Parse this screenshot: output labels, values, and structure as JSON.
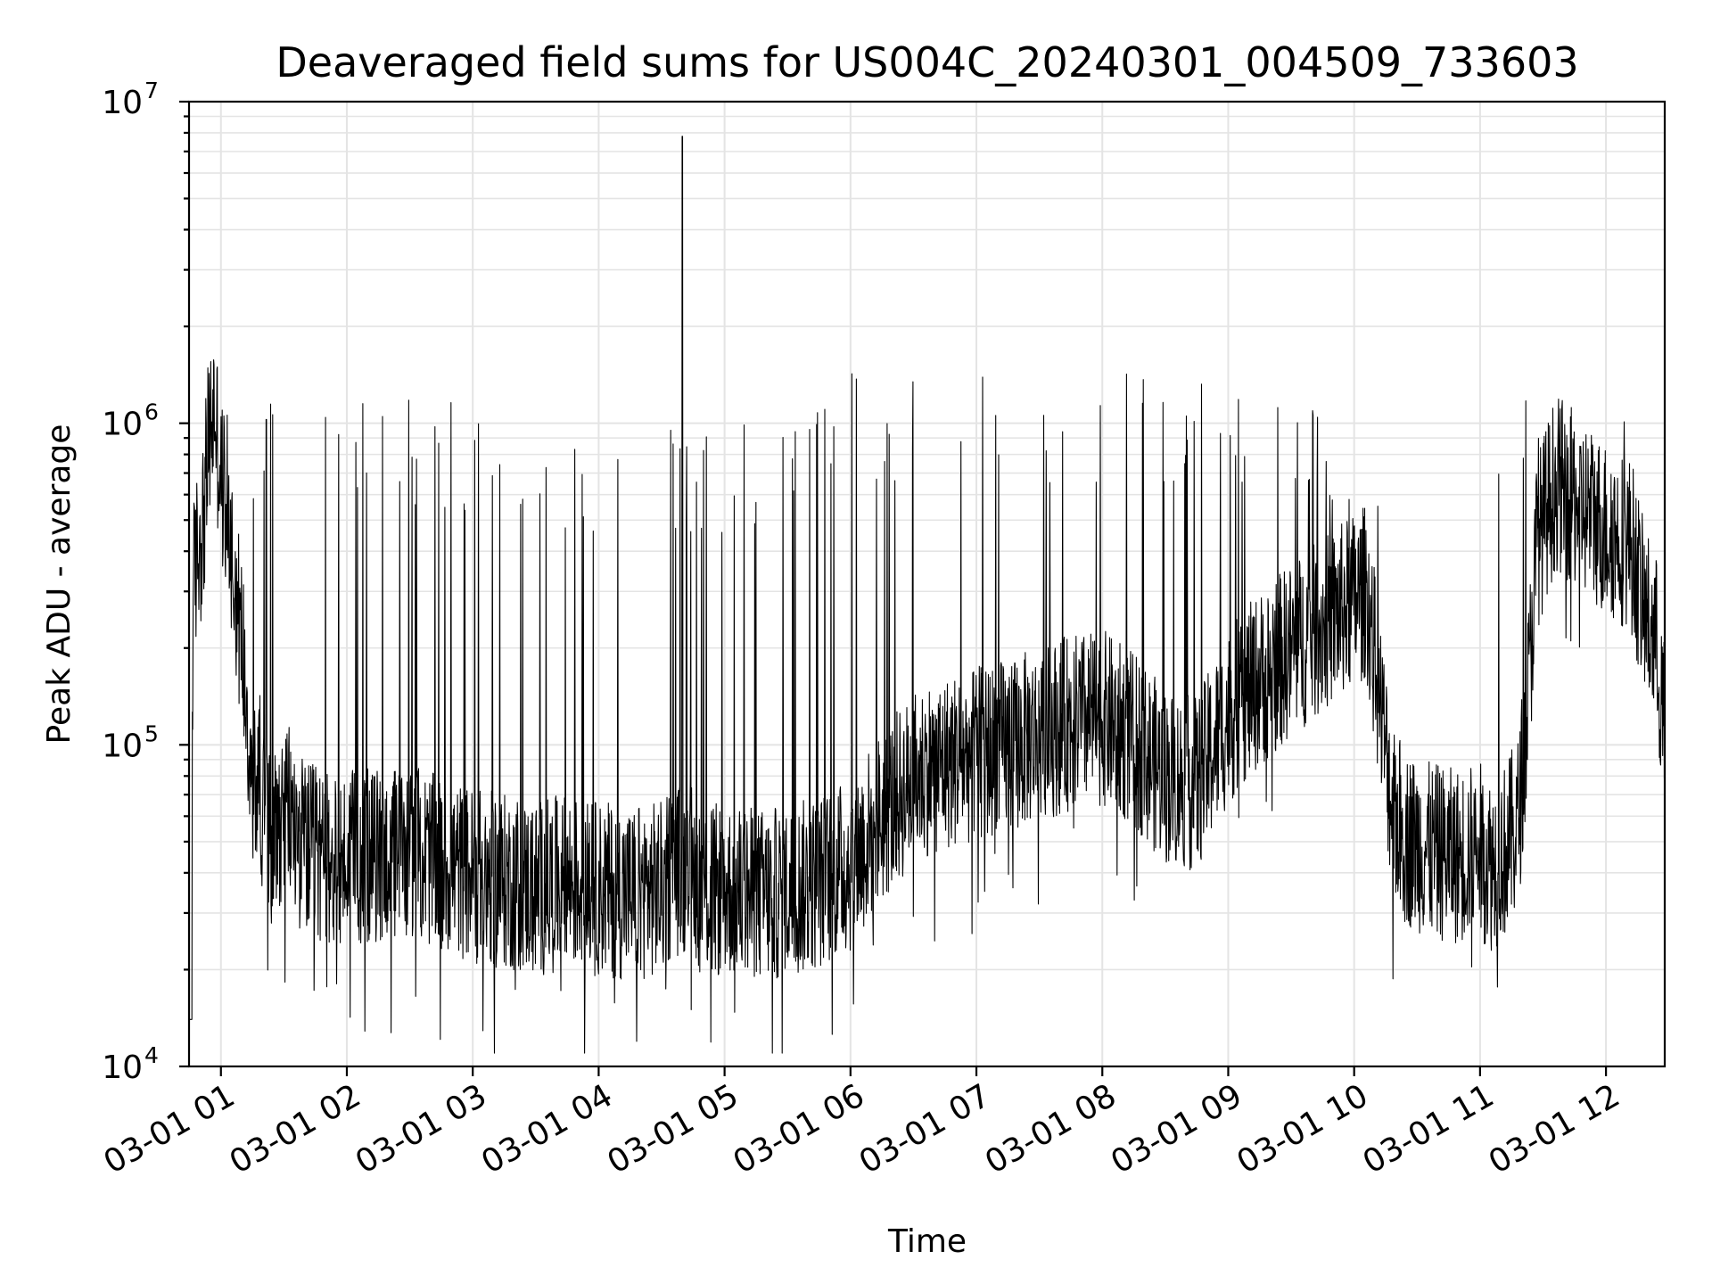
{
  "chart_data": {
    "type": "line",
    "title": "Deaveraged field sums for US004C_20240301_004509_733603",
    "xlabel": "Time",
    "ylabel": "Peak ADU - average",
    "yscale": "log",
    "ylim": [
      10000,
      10000000
    ],
    "xlim": [
      "2024-03-01 00:45",
      "2024-03-01 12:28"
    ],
    "x_ticks": [
      "03-01 01",
      "03-01 02",
      "03-01 03",
      "03-01 04",
      "03-01 05",
      "03-01 06",
      "03-01 07",
      "03-01 08",
      "03-01 09",
      "03-01 10",
      "03-01 11",
      "03-01 12"
    ],
    "y_ticks": [
      {
        "base": "10",
        "exp": "4",
        "value": 10000
      },
      {
        "base": "10",
        "exp": "5",
        "value": 100000
      },
      {
        "base": "10",
        "exp": "6",
        "value": 1000000
      },
      {
        "base": "10",
        "exp": "7",
        "value": 10000000
      }
    ],
    "grid": true,
    "series": [
      {
        "color": "#000000",
        "x_hours": [
          0.75,
          0.78,
          0.82,
          0.86,
          0.9,
          0.95,
          1.0,
          1.05,
          1.1,
          1.15,
          1.2,
          1.25,
          1.3,
          1.35,
          1.4,
          1.45,
          1.5,
          1.55,
          1.6,
          1.7,
          1.8,
          1.9,
          2.0,
          2.25,
          2.5,
          2.75,
          3.0,
          3.25,
          3.5,
          3.75,
          4.0,
          4.25,
          4.5,
          4.6,
          4.68,
          4.7,
          4.75,
          4.9,
          5.0,
          5.25,
          5.5,
          5.75,
          6.0,
          6.2,
          6.4,
          6.6,
          6.8,
          7.0,
          7.25,
          7.5,
          7.75,
          8.0,
          8.25,
          8.5,
          8.75,
          9.0,
          9.25,
          9.5,
          9.75,
          10.0,
          10.1,
          10.2,
          10.3,
          10.4,
          10.6,
          10.8,
          11.0,
          11.1,
          11.2,
          11.3,
          11.35,
          11.4,
          11.45,
          11.6,
          11.8,
          12.0,
          12.2,
          12.3,
          12.4,
          12.47
        ],
        "y_base": [
          14000,
          320000,
          450000,
          520000,
          900000,
          1200000,
          700000,
          600000,
          380000,
          250000,
          170000,
          70000,
          90000,
          60000,
          55000,
          60000,
          70000,
          65000,
          55000,
          50000,
          48000,
          45000,
          47000,
          48000,
          50000,
          45000,
          42000,
          40000,
          38000,
          40000,
          38000,
          37000,
          38000,
          45000,
          42000,
          60000,
          40000,
          37000,
          38000,
          36000,
          37000,
          40000,
          45000,
          60000,
          75000,
          90000,
          95000,
          100000,
          105000,
          115000,
          125000,
          130000,
          110000,
          85000,
          80000,
          130000,
          170000,
          210000,
          250000,
          300000,
          320000,
          150000,
          70000,
          55000,
          50000,
          48000,
          50000,
          45000,
          50000,
          60000,
          100000,
          200000,
          450000,
          700000,
          600000,
          500000,
          450000,
          280000,
          220000,
          110000
        ]
      }
    ]
  }
}
